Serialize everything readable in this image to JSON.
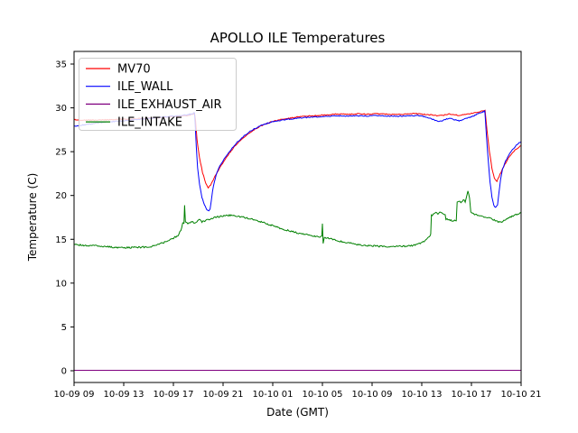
{
  "window": {
    "background": "#ffffff"
  },
  "chart_data": {
    "type": "line",
    "title": "APOLLO ILE Temperatures",
    "xlabel": "Date (GMT)",
    "ylabel": "Temperature (C)",
    "grid": false,
    "axis_color": "#000000",
    "xlim_hours": [
      0,
      36
    ],
    "ylim": [
      -1.34,
      36.44
    ],
    "x_ticks": {
      "positions_hours": [
        0,
        4,
        8,
        12,
        16,
        20,
        24,
        28,
        32,
        36
      ],
      "labels": [
        "10-09 09",
        "10-09 13",
        "10-09 17",
        "10-09 21",
        "10-10 01",
        "10-10 05",
        "10-10 09",
        "10-10 13",
        "10-10 17",
        "10-10 21"
      ]
    },
    "y_ticks": [
      0,
      5,
      10,
      15,
      20,
      25,
      30,
      35
    ],
    "legend": {
      "position": "upper-left",
      "entries": [
        "MV70",
        "ILE_WALL",
        "ILE_EXHAUST_AIR",
        "ILE_INTAKE"
      ]
    },
    "series": [
      {
        "name": "MV70",
        "color": "#ff0000",
        "noise": 0.055,
        "points": [
          [
            0,
            28.65
          ],
          [
            1,
            28.6
          ],
          [
            2,
            28.6
          ],
          [
            3,
            28.65
          ],
          [
            4,
            28.7
          ],
          [
            5,
            28.75
          ],
          [
            6,
            28.82
          ],
          [
            7,
            28.9
          ],
          [
            8,
            29.0
          ],
          [
            9,
            29.1
          ],
          [
            9.4,
            29.22
          ],
          [
            9.7,
            29.35
          ],
          [
            9.78,
            28.6
          ],
          [
            9.9,
            26.4
          ],
          [
            10.1,
            24.3
          ],
          [
            10.35,
            22.6
          ],
          [
            10.6,
            21.4
          ],
          [
            10.8,
            20.85
          ],
          [
            11,
            21.2
          ],
          [
            11.4,
            22.3
          ],
          [
            11.8,
            23.3
          ],
          [
            12.2,
            24.2
          ],
          [
            12.6,
            25.0
          ],
          [
            13,
            25.7
          ],
          [
            13.4,
            26.3
          ],
          [
            13.8,
            26.8
          ],
          [
            14.2,
            27.2
          ],
          [
            14.6,
            27.6
          ],
          [
            15,
            27.9
          ],
          [
            15.5,
            28.2
          ],
          [
            16,
            28.45
          ],
          [
            16.5,
            28.62
          ],
          [
            17,
            28.75
          ],
          [
            17.5,
            28.85
          ],
          [
            18,
            28.95
          ],
          [
            18.5,
            29.02
          ],
          [
            19,
            29.08
          ],
          [
            19.5,
            29.12
          ],
          [
            20,
            29.16
          ],
          [
            20.5,
            29.2
          ],
          [
            21,
            29.28
          ],
          [
            21.5,
            29.3
          ],
          [
            22,
            29.25
          ],
          [
            22.5,
            29.3
          ],
          [
            23,
            29.32
          ],
          [
            23.5,
            29.28
          ],
          [
            24,
            29.3
          ],
          [
            24.5,
            29.33
          ],
          [
            25,
            29.3
          ],
          [
            25.5,
            29.26
          ],
          [
            26,
            29.3
          ],
          [
            26.5,
            29.28
          ],
          [
            27,
            29.32
          ],
          [
            27.5,
            29.35
          ],
          [
            28,
            29.28
          ],
          [
            28.5,
            29.22
          ],
          [
            29,
            29.18
          ],
          [
            29.3,
            29.08
          ],
          [
            29.7,
            29.15
          ],
          [
            30,
            29.25
          ],
          [
            30.3,
            29.3
          ],
          [
            30.7,
            29.18
          ],
          [
            31,
            29.12
          ],
          [
            31.4,
            29.25
          ],
          [
            31.8,
            29.32
          ],
          [
            32.2,
            29.4
          ],
          [
            32.6,
            29.55
          ],
          [
            33,
            29.68
          ],
          [
            33.1,
            29.7
          ],
          [
            33.25,
            27.5
          ],
          [
            33.45,
            25.0
          ],
          [
            33.65,
            23.1
          ],
          [
            33.85,
            22.0
          ],
          [
            34.05,
            21.6
          ],
          [
            34.3,
            22.4
          ],
          [
            34.6,
            23.3
          ],
          [
            34.9,
            24.1
          ],
          [
            35.2,
            24.7
          ],
          [
            35.5,
            25.15
          ],
          [
            35.75,
            25.45
          ],
          [
            36,
            25.7
          ]
        ]
      },
      {
        "name": "ILE_WALL",
        "color": "#0000ff",
        "noise": 0.055,
        "points": [
          [
            0,
            27.9
          ],
          [
            1,
            28.1
          ],
          [
            2,
            28.3
          ],
          [
            3,
            28.42
          ],
          [
            4,
            28.52
          ],
          [
            5,
            28.65
          ],
          [
            6,
            28.78
          ],
          [
            7,
            28.92
          ],
          [
            8,
            29.05
          ],
          [
            9,
            29.18
          ],
          [
            9.4,
            29.3
          ],
          [
            9.7,
            29.42
          ],
          [
            9.76,
            28.0
          ],
          [
            9.85,
            25.5
          ],
          [
            9.95,
            23.2
          ],
          [
            10.1,
            21.3
          ],
          [
            10.3,
            19.8
          ],
          [
            10.5,
            18.9
          ],
          [
            10.7,
            18.4
          ],
          [
            10.85,
            18.2
          ],
          [
            10.95,
            18.4
          ],
          [
            11.05,
            19.3
          ],
          [
            11.15,
            20.5
          ],
          [
            11.3,
            21.6
          ],
          [
            11.5,
            22.6
          ],
          [
            11.75,
            23.4
          ],
          [
            12.1,
            24.2
          ],
          [
            12.5,
            25.0
          ],
          [
            12.9,
            25.7
          ],
          [
            13.3,
            26.3
          ],
          [
            13.7,
            26.8
          ],
          [
            14.1,
            27.25
          ],
          [
            14.5,
            27.6
          ],
          [
            15,
            27.95
          ],
          [
            15.5,
            28.2
          ],
          [
            16,
            28.4
          ],
          [
            16.5,
            28.55
          ],
          [
            17,
            28.65
          ],
          [
            17.5,
            28.75
          ],
          [
            18,
            28.82
          ],
          [
            18.5,
            28.88
          ],
          [
            19,
            28.93
          ],
          [
            19.5,
            28.97
          ],
          [
            20,
            29.0
          ],
          [
            20.5,
            29.03
          ],
          [
            21,
            29.08
          ],
          [
            21.5,
            29.1
          ],
          [
            22,
            29.05
          ],
          [
            22.5,
            29.08
          ],
          [
            23,
            29.1
          ],
          [
            23.5,
            29.06
          ],
          [
            24,
            29.1
          ],
          [
            24.5,
            29.12
          ],
          [
            25,
            29.08
          ],
          [
            25.5,
            29.04
          ],
          [
            26,
            29.06
          ],
          [
            26.5,
            29.05
          ],
          [
            27,
            29.1
          ],
          [
            27.5,
            29.12
          ],
          [
            28,
            29.05
          ],
          [
            28.5,
            28.9
          ],
          [
            29,
            28.62
          ],
          [
            29.3,
            28.48
          ],
          [
            29.7,
            28.55
          ],
          [
            30,
            28.72
          ],
          [
            30.3,
            28.82
          ],
          [
            30.7,
            28.6
          ],
          [
            31,
            28.52
          ],
          [
            31.4,
            28.7
          ],
          [
            31.8,
            28.9
          ],
          [
            32.2,
            29.1
          ],
          [
            32.6,
            29.38
          ],
          [
            33.08,
            29.62
          ],
          [
            33.2,
            27.0
          ],
          [
            33.35,
            24.0
          ],
          [
            33.5,
            21.5
          ],
          [
            33.65,
            19.8
          ],
          [
            33.8,
            18.9
          ],
          [
            33.95,
            18.6
          ],
          [
            34.1,
            18.9
          ],
          [
            34.2,
            20.2
          ],
          [
            34.35,
            21.8
          ],
          [
            34.5,
            23.0
          ],
          [
            34.75,
            23.9
          ],
          [
            35,
            24.6
          ],
          [
            35.3,
            25.2
          ],
          [
            35.6,
            25.7
          ],
          [
            35.85,
            26.0
          ],
          [
            36,
            26.15
          ]
        ]
      },
      {
        "name": "ILE_EXHAUST_AIR",
        "color": "#800080",
        "noise": 0,
        "points": [
          [
            0,
            0.05
          ],
          [
            36,
            0.05
          ]
        ]
      },
      {
        "name": "ILE_INTAKE",
        "color": "#008000",
        "noise": 0.09,
        "points": [
          [
            0,
            14.4
          ],
          [
            0.5,
            14.35
          ],
          [
            1,
            14.3
          ],
          [
            1.5,
            14.28
          ],
          [
            2,
            14.22
          ],
          [
            2.5,
            14.18
          ],
          [
            3,
            14.12
          ],
          [
            3.5,
            14.08
          ],
          [
            4,
            14.05
          ],
          [
            4.5,
            14.05
          ],
          [
            5,
            14.08
          ],
          [
            5.5,
            14.1
          ],
          [
            6,
            14.15
          ],
          [
            6.5,
            14.25
          ],
          [
            7,
            14.5
          ],
          [
            7.5,
            14.8
          ],
          [
            8,
            15.1
          ],
          [
            8.4,
            15.5
          ],
          [
            8.6,
            16.0
          ],
          [
            8.75,
            16.8
          ],
          [
            8.85,
            16.9
          ],
          [
            8.9,
            18.85
          ],
          [
            8.97,
            17.0
          ],
          [
            9.1,
            16.8
          ],
          [
            9.3,
            16.9
          ],
          [
            9.5,
            17.0
          ],
          [
            9.7,
            16.9
          ],
          [
            9.9,
            17.05
          ],
          [
            10.1,
            17.2
          ],
          [
            10.3,
            17.0
          ],
          [
            10.6,
            17.15
          ],
          [
            11,
            17.35
          ],
          [
            11.5,
            17.55
          ],
          [
            12,
            17.65
          ],
          [
            12.5,
            17.75
          ],
          [
            13,
            17.7
          ],
          [
            13.5,
            17.55
          ],
          [
            14,
            17.4
          ],
          [
            14.5,
            17.2
          ],
          [
            15,
            17.0
          ],
          [
            15.5,
            16.8
          ],
          [
            16,
            16.55
          ],
          [
            16.5,
            16.3
          ],
          [
            17,
            16.1
          ],
          [
            17.5,
            15.9
          ],
          [
            18,
            15.72
          ],
          [
            18.5,
            15.58
          ],
          [
            19,
            15.45
          ],
          [
            19.5,
            15.35
          ],
          [
            19.95,
            15.3
          ],
          [
            20.0,
            16.7
          ],
          [
            20.06,
            14.5
          ],
          [
            20.15,
            15.25
          ],
          [
            20.6,
            15.05
          ],
          [
            21,
            14.9
          ],
          [
            21.5,
            14.75
          ],
          [
            22,
            14.6
          ],
          [
            22.5,
            14.48
          ],
          [
            23,
            14.38
          ],
          [
            23.5,
            14.3
          ],
          [
            24,
            14.25
          ],
          [
            24.5,
            14.2
          ],
          [
            25,
            14.18
          ],
          [
            25.5,
            14.15
          ],
          [
            26,
            14.18
          ],
          [
            26.5,
            14.2
          ],
          [
            27,
            14.25
          ],
          [
            27.4,
            14.32
          ],
          [
            27.8,
            14.5
          ],
          [
            28.1,
            14.7
          ],
          [
            28.4,
            15.0
          ],
          [
            28.6,
            15.3
          ],
          [
            28.72,
            15.55
          ],
          [
            28.78,
            17.7
          ],
          [
            29,
            17.9
          ],
          [
            29.15,
            18.05
          ],
          [
            29.3,
            17.85
          ],
          [
            29.5,
            18.1
          ],
          [
            29.7,
            17.95
          ],
          [
            29.88,
            17.8
          ],
          [
            29.95,
            17.3
          ],
          [
            30.2,
            17.2
          ],
          [
            30.5,
            17.12
          ],
          [
            30.78,
            17.1
          ],
          [
            30.85,
            19.2
          ],
          [
            31,
            19.4
          ],
          [
            31.15,
            19.1
          ],
          [
            31.35,
            19.55
          ],
          [
            31.5,
            19.25
          ],
          [
            31.65,
            20.1
          ],
          [
            31.72,
            20.45
          ],
          [
            31.85,
            19.7
          ],
          [
            31.95,
            18.2
          ],
          [
            32.1,
            17.95
          ],
          [
            32.4,
            17.8
          ],
          [
            32.8,
            17.65
          ],
          [
            33.2,
            17.55
          ],
          [
            33.6,
            17.35
          ],
          [
            34,
            17.1
          ],
          [
            34.3,
            16.95
          ],
          [
            34.6,
            17.1
          ],
          [
            34.9,
            17.35
          ],
          [
            35.2,
            17.6
          ],
          [
            35.5,
            17.8
          ],
          [
            35.8,
            17.95
          ],
          [
            36,
            18.05
          ]
        ]
      }
    ]
  }
}
